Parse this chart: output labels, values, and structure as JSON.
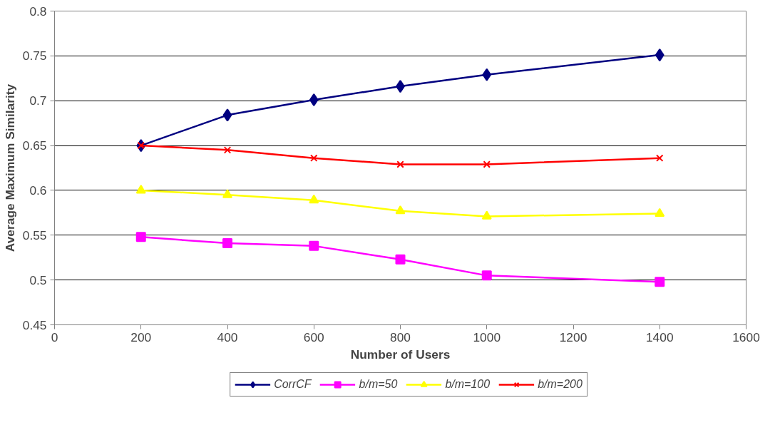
{
  "chart_data": {
    "type": "line",
    "xlabel": "Number of Users",
    "ylabel": "Average Maximum Similarity",
    "x": [
      200,
      400,
      600,
      800,
      1000,
      1400
    ],
    "series": [
      {
        "name": "CorrCF",
        "color": "#000080",
        "marker": "diamond",
        "values": [
          0.65,
          0.684,
          0.701,
          0.716,
          0.729,
          0.751
        ]
      },
      {
        "name": "b/m=50",
        "color": "#ff00ff",
        "marker": "square",
        "values": [
          0.548,
          0.541,
          0.538,
          0.523,
          0.505,
          0.498
        ]
      },
      {
        "name": "b/m=100",
        "color": "#ffff00",
        "marker": "triangle",
        "values": [
          0.6,
          0.595,
          0.589,
          0.577,
          0.571,
          0.574
        ]
      },
      {
        "name": "b/m=200",
        "color": "#ff0000",
        "marker": "cross",
        "values": [
          0.65,
          0.645,
          0.636,
          0.629,
          0.629,
          0.636
        ]
      }
    ],
    "xlim": [
      0,
      1600
    ],
    "xticks": [
      0,
      200,
      400,
      600,
      800,
      1000,
      1200,
      1400,
      1600
    ],
    "ylim": [
      0.45,
      0.8
    ],
    "yticks": [
      0.45,
      0.5,
      0.55,
      0.6,
      0.65,
      0.7,
      0.75,
      0.8
    ],
    "grid": "y",
    "legend": "bottom",
    "line_style": "solid"
  }
}
